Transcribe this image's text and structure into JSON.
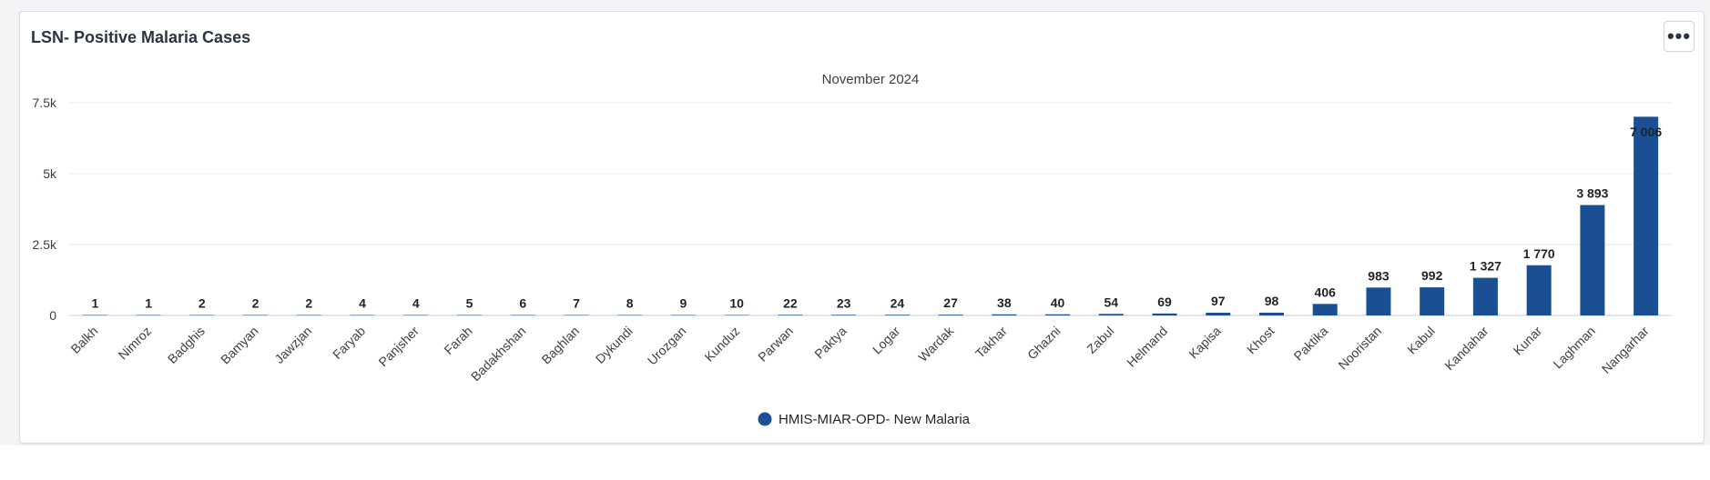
{
  "card": {
    "title": "LSN- Positive Malaria Cases",
    "menu_icon": "more-horizontal-icon"
  },
  "colors": {
    "bar": "#1b4f93",
    "grid": "#e8eaed",
    "axis": "#c9ccd1",
    "text": "#3c4043",
    "label": "#1f2328"
  },
  "chart_data": {
    "type": "bar",
    "title": "",
    "subtitle": "November 2024",
    "xlabel": "",
    "ylabel": "",
    "ylim": [
      0,
      7500
    ],
    "y_ticks": [
      {
        "value": 0,
        "label": "0"
      },
      {
        "value": 2500,
        "label": "2.5k"
      },
      {
        "value": 5000,
        "label": "5k"
      },
      {
        "value": 7500,
        "label": "7.5k"
      }
    ],
    "categories": [
      "Balkh",
      "Nimroz",
      "Badghis",
      "Bamyan",
      "Jawzjan",
      "Faryab",
      "Panjsher",
      "Farah",
      "Badakhshan",
      "Baghlan",
      "Dykundi",
      "Urozgan",
      "Kunduz",
      "Parwan",
      "Paktya",
      "Logar",
      "Wardak",
      "Takhar",
      "Ghazni",
      "Zabul",
      "Helmand",
      "Kapisa",
      "Khost",
      "Paktika",
      "Nooristan",
      "Kabul",
      "Kandahar",
      "Kunar",
      "Laghman",
      "Nangarhar"
    ],
    "series": [
      {
        "name": "HMIS-MIAR-OPD- New Malaria",
        "values": [
          1,
          1,
          2,
          2,
          2,
          4,
          4,
          5,
          6,
          7,
          8,
          9,
          10,
          22,
          23,
          24,
          27,
          38,
          40,
          54,
          69,
          97,
          98,
          406,
          983,
          992,
          1327,
          1770,
          3893,
          7006
        ],
        "labels": [
          "1",
          "1",
          "2",
          "2",
          "2",
          "4",
          "4",
          "5",
          "6",
          "7",
          "8",
          "9",
          "10",
          "22",
          "23",
          "24",
          "27",
          "38",
          "40",
          "54",
          "69",
          "97",
          "98",
          "406",
          "983",
          "992",
          "1 327",
          "1 770",
          "3 893",
          "7 006"
        ]
      }
    ],
    "grid": true,
    "legend": "bottom-center"
  }
}
